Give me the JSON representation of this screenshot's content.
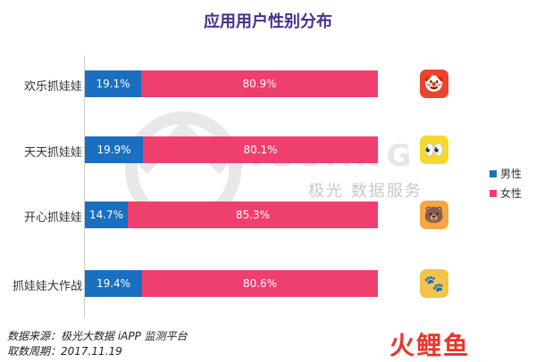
{
  "title": "应用用户性别分布",
  "colors": {
    "male": "#1a6fc0",
    "female": "#ef3f6e",
    "title": "#4b2d8f"
  },
  "watermark": {
    "brand": "JIGUANG",
    "text": "极光 数据服务"
  },
  "legend": [
    {
      "label": "男性",
      "color": "#1a6fc0"
    },
    {
      "label": "女性",
      "color": "#ef3f6e"
    }
  ],
  "chart_data": {
    "type": "bar",
    "stacked": true,
    "orientation": "horizontal",
    "percent": true,
    "categories": [
      "欢乐抓娃娃",
      "天天抓娃娃",
      "开心抓娃娃",
      "抓娃娃大作战"
    ],
    "series": [
      {
        "name": "男性",
        "values": [
          19.1,
          19.9,
          14.7,
          19.4
        ],
        "labels": [
          "19.1%",
          "19.9%",
          "14.7%",
          "19.4%"
        ]
      },
      {
        "name": "女性",
        "values": [
          80.9,
          80.1,
          85.3,
          80.6
        ],
        "labels": [
          "80.9%",
          "80.1%",
          "85.3%",
          "80.6%"
        ]
      }
    ],
    "xlim": [
      0,
      100
    ],
    "legend_position": "right"
  },
  "app_icons": [
    {
      "name": "clown-face-icon",
      "glyph": "🤡",
      "bg": "#e8442f"
    },
    {
      "name": "robot-face-icon",
      "glyph": "👀",
      "bg": "#f6d82b"
    },
    {
      "name": "bear-face-icon",
      "glyph": "🐻",
      "bg": "#f4a742"
    },
    {
      "name": "cat-paw-icon",
      "glyph": "🐾",
      "bg": "#f3c44a"
    }
  ],
  "footer": {
    "source": "数据来源：极光大数据 iAPP 监测平台",
    "period": "取数周期：2017.11.19"
  },
  "logo": "火鲤鱼"
}
